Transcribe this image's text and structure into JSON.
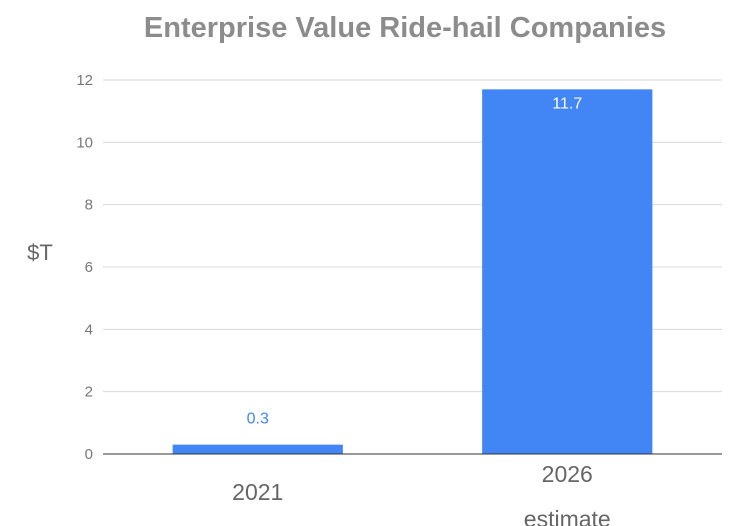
{
  "chart_data": {
    "type": "bar",
    "title": "Enterprise Value Ride-hail Companies",
    "xlabel": "",
    "ylabel": "$T",
    "categories": [
      [
        "2021"
      ],
      [
        "2026",
        "estimate"
      ]
    ],
    "values": [
      0.3,
      11.7
    ],
    "data_labels": [
      "0.3",
      "11.7"
    ],
    "ylim": [
      0,
      12
    ],
    "yticks": [
      0,
      2,
      4,
      6,
      8,
      10,
      12
    ],
    "grid": true,
    "legend": "none",
    "bar_color": "#4285f4"
  }
}
